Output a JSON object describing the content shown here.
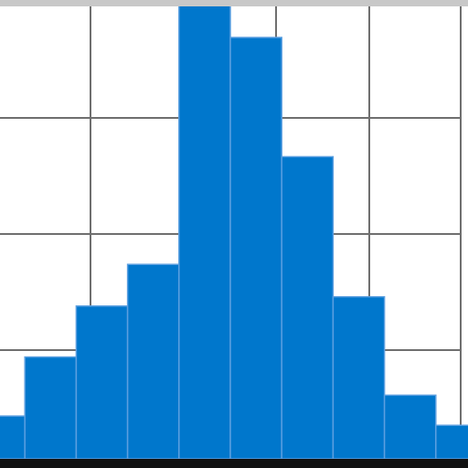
{
  "chart_data": {
    "type": "bar",
    "subtype": "histogram",
    "values": [
      0.37,
      0.88,
      1.32,
      1.68,
      3.94,
      3.64,
      2.61,
      1.4,
      0.55,
      0.29
    ],
    "ylim": [
      0,
      3.94
    ],
    "grid": true,
    "colors": {
      "bar_fill": "#0077cc",
      "bar_edge": "#5b9fe0",
      "grid": "#6f6f6f",
      "top_border": "#c8c8c8",
      "baseline": "#111111"
    }
  }
}
